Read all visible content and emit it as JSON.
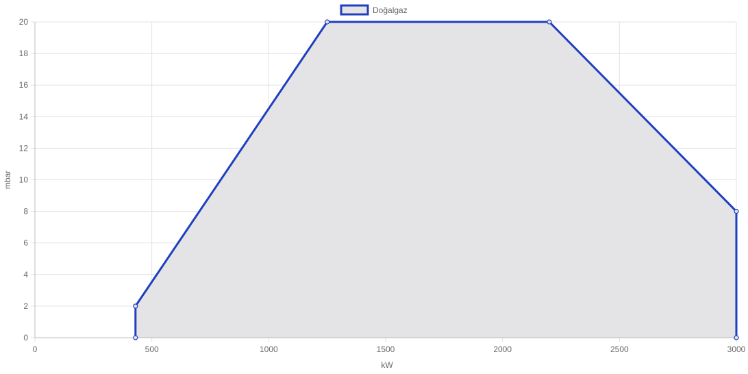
{
  "chart_data": {
    "type": "area",
    "title": "",
    "xlabel": "kW",
    "ylabel": "mbar",
    "xlim": [
      0,
      3000
    ],
    "ylim": [
      0,
      20
    ],
    "x_ticks": [
      "0",
      "500",
      "1000",
      "1500",
      "2000",
      "2500",
      "3000"
    ],
    "y_ticks": [
      "0",
      "2",
      "4",
      "6",
      "8",
      "10",
      "12",
      "14",
      "16",
      "18",
      "20"
    ],
    "grid": true,
    "legend_position": "top",
    "series": [
      {
        "name": "Doğalgaz",
        "line_color": "#1f3fbf",
        "fill_color": "#e4e4e6",
        "points": [
          {
            "x": 430,
            "y": 0
          },
          {
            "x": 430,
            "y": 2
          },
          {
            "x": 1250,
            "y": 20
          },
          {
            "x": 2200,
            "y": 20
          },
          {
            "x": 3000,
            "y": 8
          },
          {
            "x": 3000,
            "y": 0
          }
        ]
      }
    ]
  }
}
